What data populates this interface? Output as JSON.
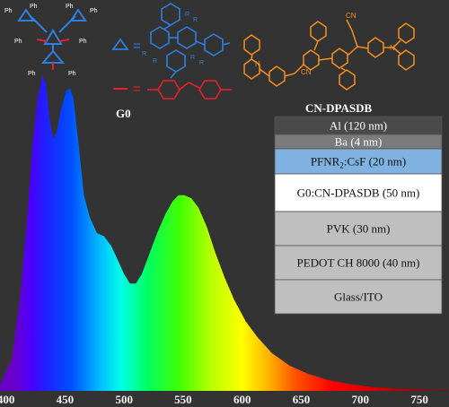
{
  "chart_data": {
    "type": "area",
    "title": "",
    "xlabel": "",
    "ylabel": "",
    "xlim": [
      395,
      775
    ],
    "ylim": [
      0,
      1
    ],
    "x_ticks": [
      "400",
      "450",
      "500",
      "550",
      "600",
      "650",
      "700",
      "750"
    ],
    "fill": "visible-spectrum-gradient",
    "grid": false,
    "series": [
      {
        "points": [
          [
            395,
            0.02
          ],
          [
            405,
            0.1
          ],
          [
            412,
            0.3
          ],
          [
            418,
            0.55
          ],
          [
            423,
            0.8
          ],
          [
            427,
            0.93
          ],
          [
            431,
            1.0
          ],
          [
            434,
            0.97
          ],
          [
            437,
            0.86
          ],
          [
            440,
            0.8
          ],
          [
            443,
            0.82
          ],
          [
            447,
            0.9
          ],
          [
            451,
            0.95
          ],
          [
            454,
            0.96
          ],
          [
            457,
            0.93
          ],
          [
            461,
            0.8
          ],
          [
            466,
            0.62
          ],
          [
            471,
            0.55
          ],
          [
            477,
            0.5
          ],
          [
            483,
            0.49
          ],
          [
            489,
            0.46
          ],
          [
            494,
            0.42
          ],
          [
            500,
            0.37
          ],
          [
            505,
            0.34
          ],
          [
            510,
            0.34
          ],
          [
            515,
            0.37
          ],
          [
            521,
            0.43
          ],
          [
            528,
            0.5
          ],
          [
            535,
            0.56
          ],
          [
            541,
            0.6
          ],
          [
            546,
            0.62
          ],
          [
            551,
            0.62
          ],
          [
            557,
            0.61
          ],
          [
            563,
            0.58
          ],
          [
            570,
            0.52
          ],
          [
            577,
            0.44
          ],
          [
            585,
            0.36
          ],
          [
            593,
            0.29
          ],
          [
            603,
            0.22
          ],
          [
            613,
            0.17
          ],
          [
            625,
            0.12
          ],
          [
            640,
            0.08
          ],
          [
            655,
            0.055
          ],
          [
            672,
            0.035
          ],
          [
            690,
            0.022
          ],
          [
            710,
            0.012
          ],
          [
            735,
            0.006
          ],
          [
            760,
            0.003
          ],
          [
            775,
            0.002
          ]
        ]
      }
    ]
  },
  "device_stack": {
    "layers": [
      {
        "text": "Al (120 nm)",
        "fill": "#4a4a4a",
        "color": "#ffffff"
      },
      {
        "text": "Ba (4 nm)",
        "fill": "#7b7b7b",
        "color": "#ffffff"
      },
      {
        "pre": "PFNR",
        "sub": "2",
        "post": ":CsF (20 nm)",
        "fill": "#7fb2e0",
        "color": "#111111"
      },
      {
        "text": "G0:CN-DPASDB (50 nm)",
        "fill": "#ffffff",
        "color": "#111111"
      },
      {
        "text": "PVK (30 nm)",
        "fill": "#bfbfbf",
        "color": "#111111"
      },
      {
        "text": "PEDOT CH 8000 (40 nm)",
        "fill": "#bfbfbf",
        "color": "#111111"
      },
      {
        "text": "Glass/ITO",
        "fill": "#bfbfbf",
        "color": "#111111"
      }
    ]
  },
  "structures": {
    "g0_label": "G0",
    "cn_dpasdb_label": "CN-DPASDB",
    "ph_label": "Ph",
    "cn_label": "CN",
    "r_label": "R",
    "equals": "=",
    "colors": {
      "blue": "#2f7fe0",
      "red": "#e8202a",
      "orange": "#f5901e"
    }
  }
}
